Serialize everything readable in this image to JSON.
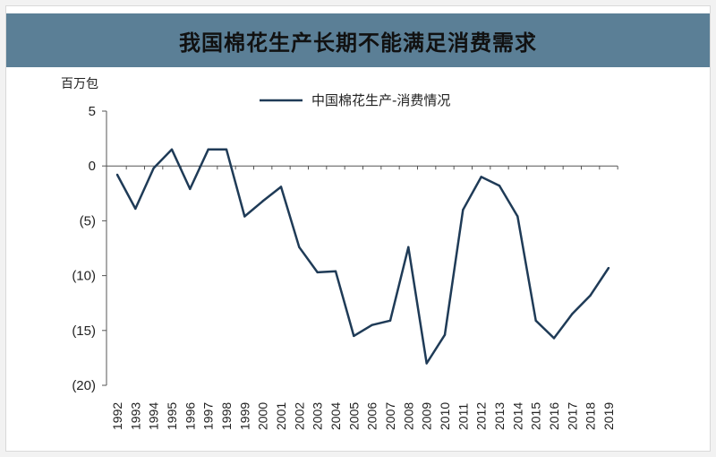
{
  "title": "我国棉花生产长期不能满足消费需求",
  "chart_data": {
    "type": "line",
    "title": "我国棉花生产长期不能满足消费需求",
    "ylabel": "百万包",
    "xlabel": "",
    "ylim": [
      -20,
      5
    ],
    "y_ticks": [
      5,
      0,
      -5,
      -10,
      -15,
      -20
    ],
    "y_tick_labels": [
      "5",
      "0",
      "(5)",
      "(10)",
      "(15)",
      "(20)"
    ],
    "legend_position": "top-center",
    "grid": false,
    "x": [
      "1992",
      "1993",
      "1994",
      "1995",
      "1996",
      "1997",
      "1998",
      "1999",
      "2000",
      "2001",
      "2002",
      "2003",
      "2004",
      "2005",
      "2006",
      "2007",
      "2008",
      "2009",
      "2010",
      "2011",
      "2012",
      "2013",
      "2014",
      "2015",
      "2016",
      "2017",
      "2018",
      "2019"
    ],
    "series": [
      {
        "name": "中国棉花生产-消费情况",
        "color": "#1f3b57",
        "values": [
          -0.8,
          -3.9,
          -0.2,
          1.5,
          -2.1,
          1.5,
          1.5,
          -4.6,
          -3.2,
          -1.9,
          -7.4,
          -9.7,
          -9.6,
          -15.5,
          -14.5,
          -14.1,
          -7.4,
          -18.0,
          -15.4,
          -4.0,
          -1.0,
          -1.8,
          -4.6,
          -14.1,
          -15.7,
          -13.5,
          -11.8,
          -9.3
        ]
      }
    ]
  }
}
